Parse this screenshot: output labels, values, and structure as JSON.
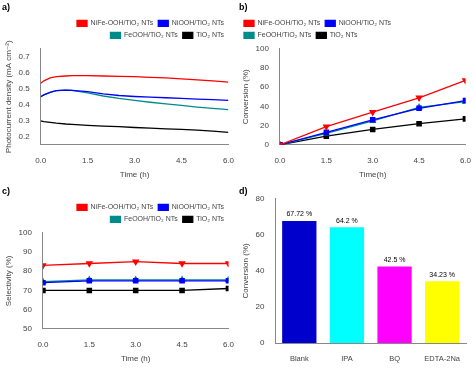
{
  "chart_data": [
    {
      "type": "line",
      "title": "a)",
      "xlabel": "Time (h)",
      "ylabel": "Photocurrent density (mA cm⁻²)",
      "xlim": [
        0,
        6
      ],
      "ylim": [
        0.15,
        0.75
      ],
      "xticks": [
        {
          "value": 0,
          "label": "0.0"
        },
        1.5,
        {
          "value": 3,
          "label": "3.0"
        },
        4.5,
        {
          "value": 6,
          "label": "6.0"
        }
      ],
      "yticks": [
        0.2,
        0.3,
        0.4,
        0.5,
        0.6,
        0.7
      ],
      "grid": false,
      "legend": "upper right",
      "x": [
        0,
        0.1,
        0.3,
        0.5,
        0.8,
        1.0,
        1.5,
        2.0,
        2.5,
        3.0,
        3.5,
        4.0,
        4.5,
        5.0,
        5.5,
        6.0
      ],
      "series": [
        {
          "name": "NiFe-OOH/TiO₂ NTs",
          "color": "#FF0000",
          "values": [
            0.535,
            0.55,
            0.568,
            0.576,
            0.58,
            0.582,
            0.582,
            0.58,
            0.578,
            0.576,
            0.572,
            0.568,
            0.562,
            0.556,
            0.55,
            0.542
          ]
        },
        {
          "name": "NiOOH/TiO₂ NTs",
          "color": "#0000FF",
          "values": [
            0.45,
            0.462,
            0.478,
            0.488,
            0.492,
            0.49,
            0.482,
            0.468,
            0.458,
            0.452,
            0.448,
            0.444,
            0.44,
            0.436,
            0.432,
            0.428
          ]
        },
        {
          "name": "FeOOH/TiO₂ NTs",
          "color": "#008B8B",
          "values": [
            0.45,
            0.462,
            0.478,
            0.488,
            0.492,
            0.49,
            0.475,
            0.455,
            0.44,
            0.428,
            0.416,
            0.406,
            0.396,
            0.386,
            0.378,
            0.37
          ]
        },
        {
          "name": "TiO₂ NTs",
          "color": "#000000",
          "values": [
            0.3,
            0.295,
            0.29,
            0.285,
            0.28,
            0.278,
            0.272,
            0.267,
            0.263,
            0.258,
            0.254,
            0.25,
            0.246,
            0.242,
            0.236,
            0.228
          ]
        }
      ]
    },
    {
      "type": "line",
      "title": "b)",
      "xlabel": "Time(h)",
      "ylabel": "Conversion (%)",
      "xlim": [
        0,
        6
      ],
      "ylim": [
        0,
        100
      ],
      "xticks": [
        {
          "value": 0,
          "label": "0.0"
        },
        1.5,
        {
          "value": 3,
          "label": "3.0"
        },
        4.5,
        {
          "value": 6,
          "label": "6.0"
        }
      ],
      "yticks": [
        0,
        20,
        40,
        60,
        80,
        100
      ],
      "grid": false,
      "legend": "upper left",
      "x": [
        0,
        1.5,
        3.0,
        4.5,
        6.0
      ],
      "series": [
        {
          "name": "NiFe-OOH/TiO₂ NTs",
          "color": "#FF0000",
          "marker": "triangle_down",
          "values": [
            0,
            19,
            34,
            49,
            67
          ]
        },
        {
          "name": "NiOOH/TiO₂ NTs",
          "color": "#0000FF",
          "marker": "square",
          "values": [
            0,
            13,
            26,
            38,
            46
          ]
        },
        {
          "name": "FeOOH/TiO₂ NTs",
          "color": "#008B8B",
          "marker": "triangle",
          "values": [
            0,
            12,
            25,
            39,
            45
          ]
        },
        {
          "name": "TiO₂ NTs",
          "color": "#000000",
          "marker": "square",
          "values": [
            0,
            9,
            16,
            22,
            27
          ]
        }
      ]
    },
    {
      "type": "line",
      "title": "c)",
      "xlabel": "Time (h)",
      "ylabel": "Selectivity (%)",
      "xlim": [
        0,
        6
      ],
      "ylim": [
        50,
        100
      ],
      "xticks": [
        {
          "value": 0,
          "label": "0.0"
        },
        1.5,
        {
          "value": 3,
          "label": "3.0"
        },
        4.5,
        {
          "value": 6,
          "label": "6.0"
        }
      ],
      "yticks": [
        50,
        60,
        70,
        80,
        90,
        100
      ],
      "grid": false,
      "legend": "upper right",
      "x": [
        0,
        1.5,
        3.0,
        4.5,
        6.0
      ],
      "series": [
        {
          "name": "NiFe-OOH/TiO₂ NTs",
          "color": "#FF0000",
          "marker": "triangle_down",
          "values": [
            83,
            84,
            85,
            84,
            84
          ]
        },
        {
          "name": "NiOOH/TiO₂ NTs",
          "color": "#0000FF",
          "marker": "square",
          "values": [
            74,
            75,
            75,
            75,
            75
          ]
        },
        {
          "name": "FeOOH/TiO₂ NTs",
          "color": "#008B8B",
          "marker": "triangle",
          "values": [
            74.5,
            75.5,
            75.5,
            75.5,
            75.5
          ]
        },
        {
          "name": "TiO₂ NTs",
          "color": "#000000",
          "marker": "square",
          "values": [
            70,
            70,
            70,
            70,
            71
          ]
        }
      ]
    },
    {
      "type": "bar",
      "title": "d)",
      "ylabel": "Conversion (%)",
      "categories": [
        "Blank",
        "IPA",
        "BQ",
        "EDTA-2Na"
      ],
      "values": [
        67.72,
        64.2,
        42.5,
        34.23
      ],
      "value_labels": [
        "67.72 %",
        "64.2 %",
        "42.5 %",
        "34.23 %"
      ],
      "data_labels": true,
      "colors": [
        "#0000CD",
        "#00FFFF",
        "#FF00FF",
        "#FFFF00"
      ],
      "ylim": [
        0,
        80
      ],
      "yticks": [
        0,
        20,
        40,
        60,
        80
      ],
      "grid": false
    }
  ]
}
